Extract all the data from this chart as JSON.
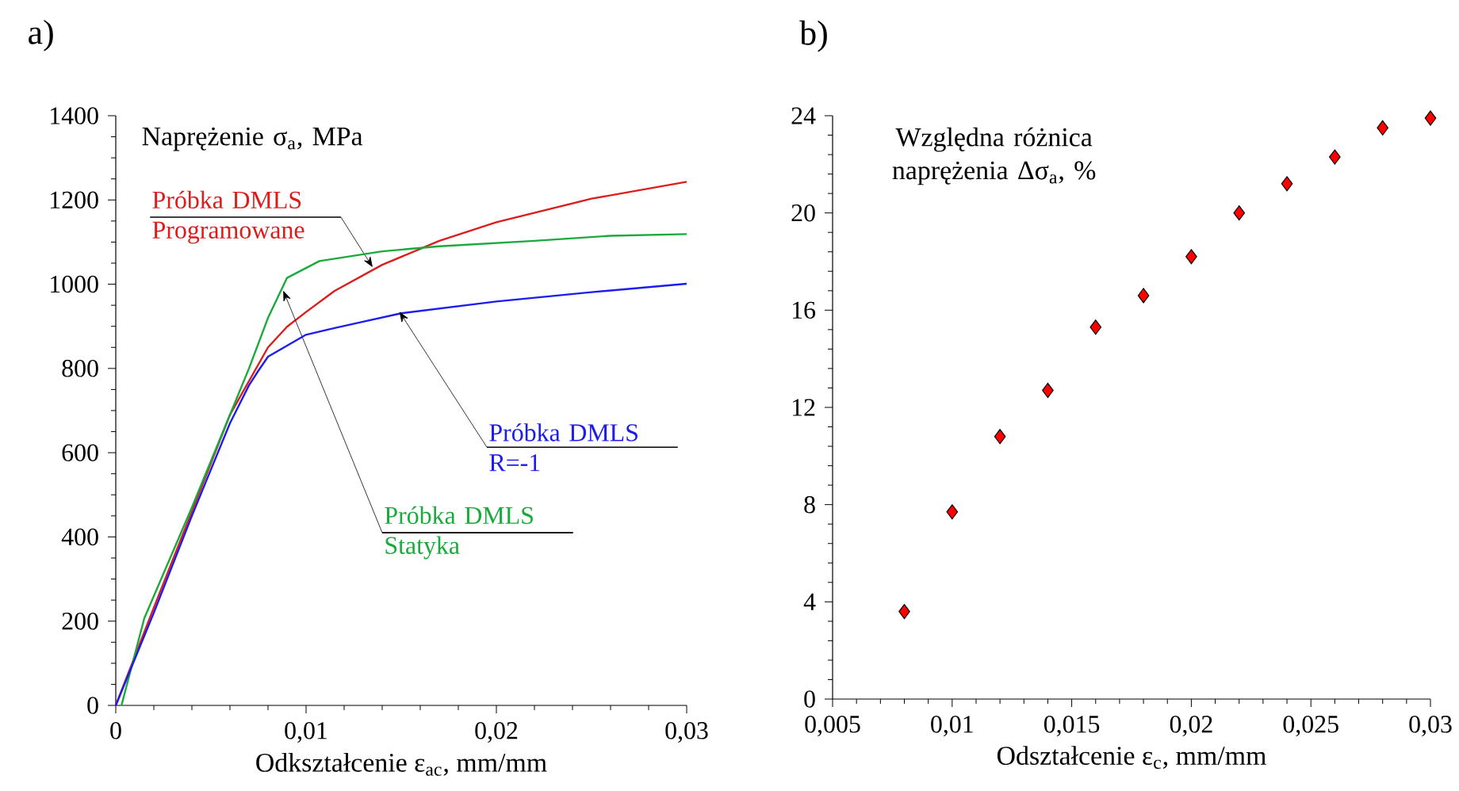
{
  "chart_data": [
    {
      "type": "line",
      "title": "a)",
      "xlabel": "Odkształcenie  ε$_{ac}$, mm/mm",
      "ylabel": "Naprężenie  σ$_{a}$, MPa",
      "xlim": [
        0,
        0.03
      ],
      "ylim": [
        0,
        1400
      ],
      "xticks": [
        0,
        {
          "value": 0.01,
          "label": "0,01"
        },
        {
          "value": 0.02,
          "label": "0,02"
        },
        {
          "value": 0.03,
          "label": "0,03"
        }
      ],
      "yticks": [
        0,
        200,
        400,
        600,
        800,
        1000,
        1200,
        1400
      ],
      "marker": "none",
      "line_style": "solid",
      "series": [
        {
          "name": "Próbka DMLS Programowane",
          "color": "#dd1c1c",
          "x": [
            0,
            0.002,
            0.004,
            0.006,
            0.007,
            0.008,
            0.009,
            0.01,
            0.0115,
            0.014,
            0.017,
            0.02,
            0.025,
            0.03
          ],
          "values": [
            0,
            232,
            460,
            690,
            770,
            850,
            899,
            934,
            984,
            1046,
            1103,
            1147,
            1203,
            1243
          ]
        },
        {
          "name": "Próbka DMLS Statyka",
          "color": "#1aaa3c",
          "x": [
            0.0003,
            0.0015,
            0.004,
            0.006,
            0.007,
            0.008,
            0.009,
            0.0107,
            0.014,
            0.017,
            0.022,
            0.026,
            0.03
          ],
          "values": [
            0,
            207,
            470,
            690,
            800,
            920,
            1015,
            1055,
            1078,
            1090,
            1103,
            1115,
            1119
          ]
        },
        {
          "name": "Próbka DMLS R=-1",
          "color": "#1c1cf0",
          "x": [
            0,
            0.002,
            0.004,
            0.006,
            0.007,
            0.0075,
            0.008,
            0.009,
            0.01,
            0.0115,
            0.013,
            0.015,
            0.02,
            0.025,
            0.03
          ],
          "values": [
            0,
            220,
            450,
            670,
            760,
            795,
            828,
            854,
            880,
            896,
            911,
            931,
            959,
            981,
            1001
          ]
        }
      ]
    },
    {
      "type": "scatter",
      "title": "b)",
      "xlabel": "Odształcenie  ε$_{c}$, mm/mm",
      "ylabel": "Względna różnica naprężenia Δσ$_{a}$, %",
      "xlim": [
        0.005,
        0.03
      ],
      "ylim": [
        0,
        24
      ],
      "xticks": [
        {
          "value": 0.005,
          "label": "0,005"
        },
        {
          "value": 0.01,
          "label": "0,01"
        },
        {
          "value": 0.015,
          "label": "0,015"
        },
        {
          "value": 0.02,
          "label": "0,02"
        },
        {
          "value": 0.025,
          "label": "0,025"
        },
        {
          "value": 0.03,
          "label": "0,03"
        }
      ],
      "yticks": [
        0,
        4,
        8,
        12,
        16,
        20,
        24
      ],
      "marker": "diamond",
      "series": [
        {
          "color": "#ff0000",
          "x": [
            0.008,
            0.01,
            0.012,
            0.014,
            0.016,
            0.018,
            0.02,
            0.022,
            0.024,
            0.026,
            0.028,
            0.03
          ],
          "values": [
            3.6,
            7.7,
            10.8,
            12.7,
            15.3,
            16.6,
            18.2,
            20.0,
            21.2,
            22.3,
            23.5,
            23.9
          ]
        }
      ]
    }
  ]
}
